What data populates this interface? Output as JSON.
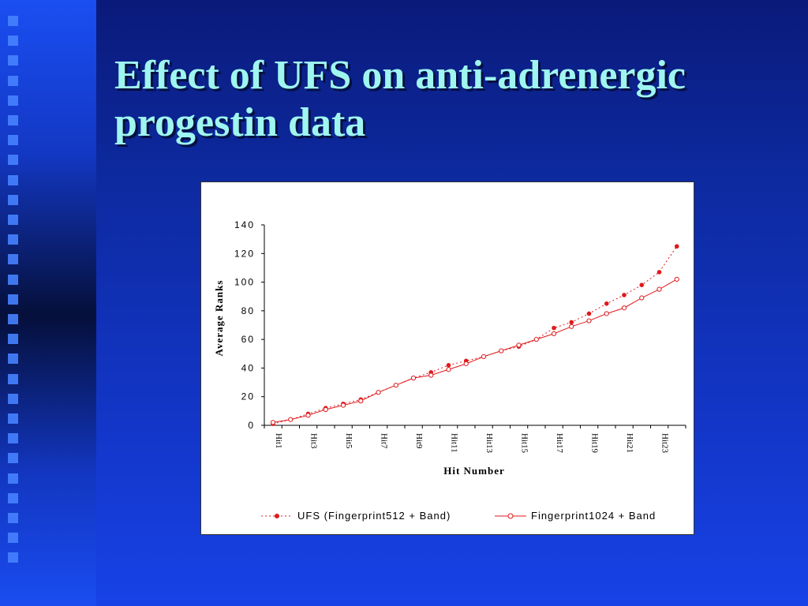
{
  "slide": {
    "title": "Effect of UFS on anti-adrenergic progestin data"
  },
  "colors": {
    "title_text": "#9ff5ef",
    "series_color": "#e0191c",
    "axis": "#000000"
  },
  "chart_data": {
    "type": "line",
    "xlabel": "Hit Number",
    "ylabel": "Average Ranks",
    "ylim": [
      0,
      140
    ],
    "yticks": [
      0,
      20,
      40,
      60,
      80,
      100,
      120,
      140
    ],
    "categories": [
      "Hit1",
      "Hit2",
      "Hit3",
      "Hit4",
      "Hit5",
      "Hit6",
      "Hit7",
      "Hit8",
      "Hit9",
      "Hit10",
      "Hit11",
      "Hit12",
      "Hit13",
      "Hit14",
      "Hit15",
      "Hit16",
      "Hit17",
      "Hit18",
      "Hit19",
      "Hit20",
      "Hit21",
      "Hit22",
      "Hit23",
      "Hit24"
    ],
    "tick_labels_shown": [
      "Hit1",
      "Hit3",
      "Hit5",
      "Hit7",
      "Hit9",
      "Hit11",
      "Hit13",
      "Hit15",
      "Hit17",
      "Hit19",
      "Hit21",
      "Hit23"
    ],
    "grid": false,
    "legend_position": "bottom",
    "series": [
      {
        "name": "UFS (Fingerprint512 + Band)",
        "style": "dotted-line-filled-markers",
        "values": [
          1,
          4,
          8,
          12,
          15,
          18,
          23,
          28,
          33,
          37,
          42,
          45,
          48,
          52,
          55,
          60,
          68,
          72,
          78,
          85,
          91,
          98,
          107,
          125
        ]
      },
      {
        "name": "Fingerprint1024 + Band",
        "style": "solid-line-open-markers",
        "values": [
          2,
          4,
          7,
          11,
          14,
          17,
          23,
          28,
          33,
          35,
          39,
          43,
          48,
          52,
          56,
          60,
          64,
          69,
          73,
          78,
          82,
          89,
          95,
          102
        ]
      }
    ]
  }
}
